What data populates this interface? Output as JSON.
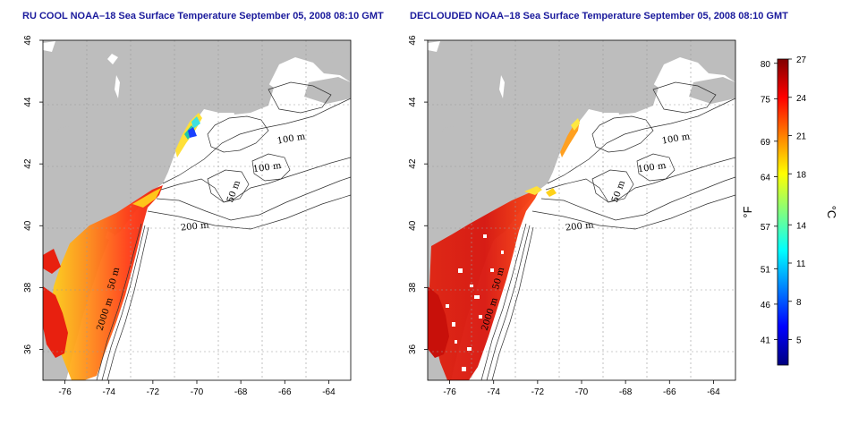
{
  "titles": {
    "left": "RU COOL NOAA–18 Sea Surface Temperature September 05, 2008 08:10 GMT",
    "right": "DECLOUDED NOAA–18 Sea Surface Temperature September 05, 2008 08:10 GMT"
  },
  "map": {
    "lon_range": [
      -77,
      -63
    ],
    "lat_range": [
      35,
      46
    ],
    "lon_ticks": [
      "-76",
      "-74",
      "-72",
      "-70",
      "-68",
      "-66",
      "-64"
    ],
    "lat_ticks": [
      "36",
      "38",
      "40",
      "42",
      "44",
      "46"
    ],
    "contour_labels": [
      "100 m",
      "100 m",
      "50 m",
      "200 m",
      "50 m",
      "2000 m"
    ],
    "colors": {
      "land": "#bdbdbd",
      "sea": "#ffffff",
      "contour": "#303030",
      "grid": "#9a9a9a"
    }
  },
  "colorbar": {
    "fahrenheit_ticks": [
      "80",
      "75",
      "69",
      "64",
      "57",
      "51",
      "46",
      "41"
    ],
    "celsius_ticks": [
      "27",
      "24",
      "21",
      "18",
      "14",
      "11",
      "8",
      "5"
    ],
    "fahrenheit_label": "°F",
    "celsius_label": "°C",
    "celsius_range": [
      3,
      27
    ],
    "gradient": [
      "#00007f",
      "#0000ff",
      "#0080ff",
      "#00ffff",
      "#80ff80",
      "#ffff00",
      "#ff8000",
      "#ff0000",
      "#800000"
    ]
  }
}
